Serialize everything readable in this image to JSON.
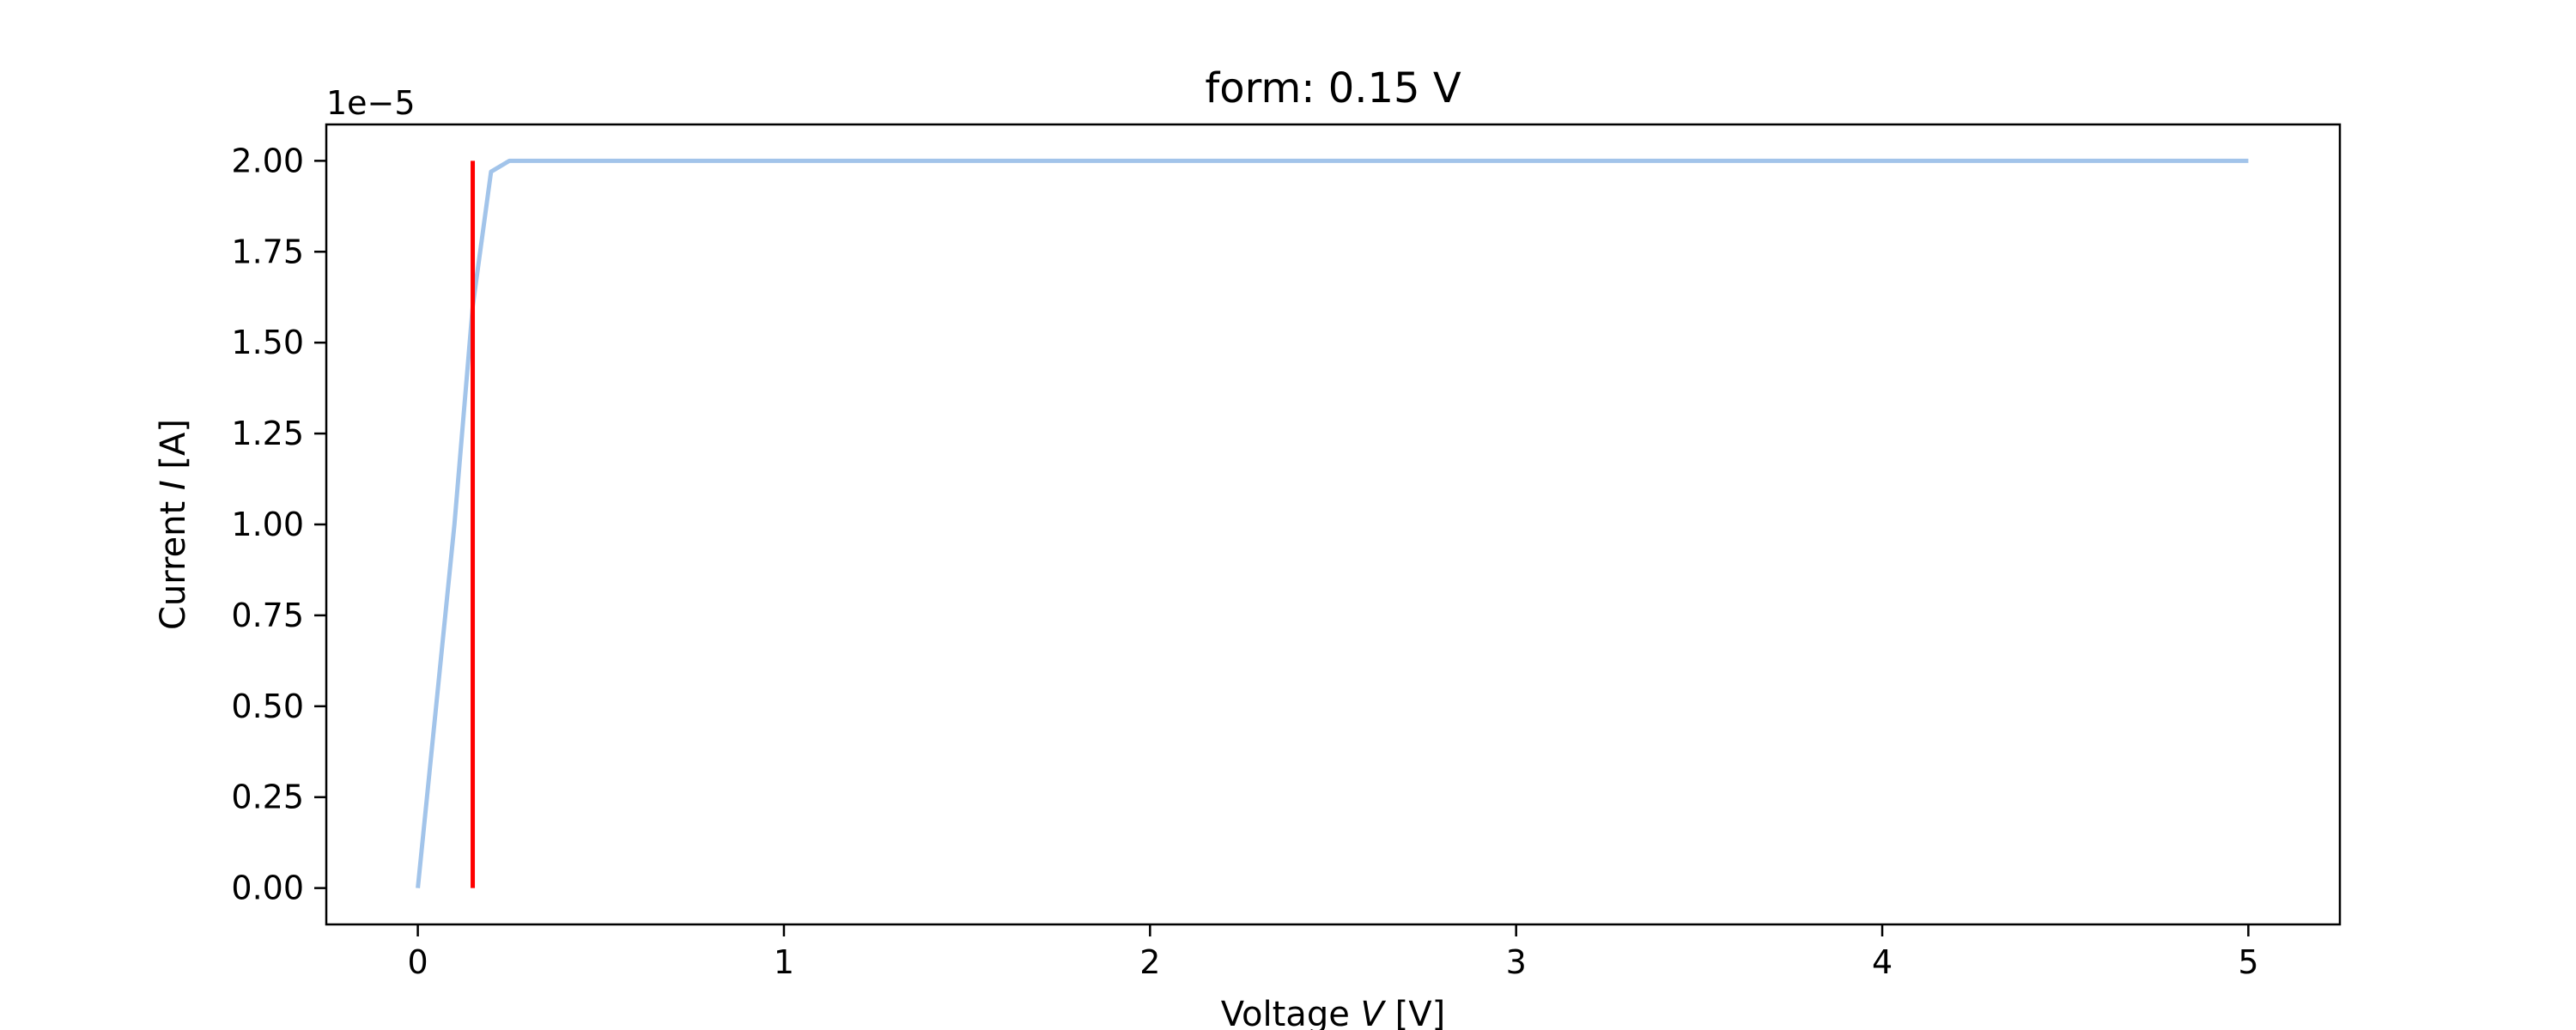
{
  "chart_data": {
    "type": "line",
    "title": "form: 0.15 V",
    "xlabel": {
      "prefix": "Voltage ",
      "symbol": "V",
      "suffix": " [V]"
    },
    "ylabel": {
      "prefix": "Current ",
      "symbol": "I",
      "suffix": " [A]"
    },
    "y_offset_label": "1e−5",
    "xlim": [
      -0.25,
      5.25
    ],
    "ylim": [
      -0.1,
      2.1
    ],
    "x_ticks": [
      0,
      1,
      2,
      3,
      4,
      5
    ],
    "x_tick_labels": [
      "0",
      "1",
      "2",
      "3",
      "4",
      "5"
    ],
    "y_ticks": [
      0,
      0.25,
      0.5,
      0.75,
      1.0,
      1.25,
      1.5,
      1.75,
      2.0
    ],
    "y_tick_labels": [
      "0.00",
      "0.25",
      "0.50",
      "0.75",
      "1.00",
      "1.25",
      "1.50",
      "1.75",
      "2.00"
    ],
    "grid": false,
    "series": [
      {
        "color": "#a2c4ea",
        "x": [
          0.0,
          0.05,
          0.1,
          0.15,
          0.2,
          0.25,
          0.3,
          0.5,
          1.0,
          1.5,
          2.0,
          2.5,
          3.0,
          3.5,
          4.0,
          4.5,
          5.0
        ],
        "y": [
          0.0,
          0.5,
          1.0,
          1.6,
          1.97,
          2.0,
          2.0,
          2.0,
          2.0,
          2.0,
          2.0,
          2.0,
          2.0,
          2.0,
          2.0,
          2.0,
          2.0
        ]
      }
    ],
    "vlines": [
      {
        "x": 0.15,
        "ymin": 0.0,
        "ymax": 2.0,
        "color": "#ff0000"
      }
    ]
  }
}
